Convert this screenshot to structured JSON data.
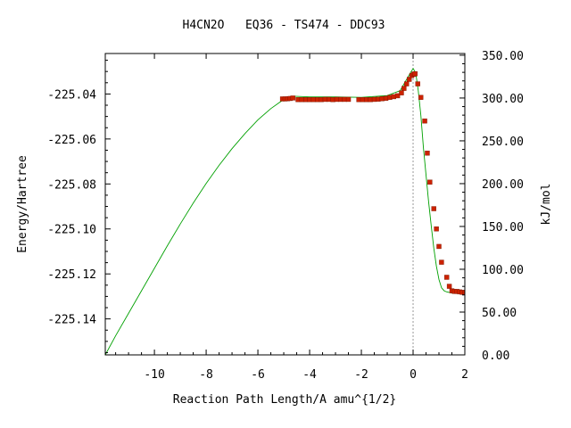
{
  "chart_data": {
    "type": "line",
    "title": "H4CN2O   EQ36 - TS474 - DDC93",
    "xlabel": "Reaction Path Length/A amu^{1/2}",
    "ylabel": "Energy/Hartree",
    "y2label": "kJ/mol",
    "xlim": [
      -11.9,
      2.0
    ],
    "ylim": [
      -225.156,
      -225.022
    ],
    "y2lim": [
      0,
      352
    ],
    "x_ticks": [
      -10,
      -8,
      -6,
      -4,
      -2,
      0,
      2
    ],
    "x_tick_labels": [
      "-10",
      "-8",
      "-6",
      "-4",
      "-2",
      "0",
      "2"
    ],
    "y_ticks": [
      -225.04,
      -225.06,
      -225.08,
      -225.1,
      -225.12,
      -225.14
    ],
    "y_tick_labels": [
      "-225.04",
      "-225.06",
      "-225.08",
      "-225.10",
      "-225.12",
      "-225.14"
    ],
    "y2_ticks": [
      350,
      300,
      250,
      200,
      150,
      100,
      50,
      0
    ],
    "y2_tick_labels": [
      "350.00",
      "300.00",
      "250.00",
      "200.00",
      "150.00",
      "100.00",
      "50.00",
      "0.00"
    ],
    "ts_marker_x": 0.0,
    "colors": {
      "curve": "#00a000",
      "points": "#cc2200",
      "ts_line": "#999999"
    },
    "series": [
      {
        "style": "line",
        "x": [
          -11.9,
          -11.5,
          -11,
          -10.5,
          -10,
          -9.5,
          -9,
          -8.5,
          -8,
          -7.5,
          -7,
          -6.5,
          -6,
          -5.5,
          -5.0,
          -4.6,
          -4.0,
          -3.0,
          -2.0,
          -1.0,
          -0.5,
          -0.3,
          -0.1,
          0.0,
          0.1,
          0.2,
          0.3,
          0.4,
          0.5,
          0.6,
          0.7,
          0.8,
          0.9,
          1.0,
          1.1,
          1.2,
          1.3,
          1.5,
          2.0
        ],
        "y": [
          -225.156,
          -225.1475,
          -225.1375,
          -225.1275,
          -225.1175,
          -225.1075,
          -225.0978,
          -225.0885,
          -225.0798,
          -225.0717,
          -225.0643,
          -225.0576,
          -225.0515,
          -225.0465,
          -225.0424,
          -225.041,
          -225.0413,
          -225.0413,
          -225.0415,
          -225.0407,
          -225.0385,
          -225.0345,
          -225.0305,
          -225.0287,
          -225.0305,
          -225.0385,
          -225.0495,
          -225.064,
          -225.076,
          -225.088,
          -225.0985,
          -225.1085,
          -225.1165,
          -225.1225,
          -225.1262,
          -225.1275,
          -225.128,
          -225.1285,
          -225.1287
        ]
      },
      {
        "style": "points",
        "x": [
          -5.05,
          -4.95,
          -4.85,
          -4.75,
          -4.65,
          -4.45,
          -4.3,
          -4.15,
          -4.0,
          -3.85,
          -3.7,
          -3.55,
          -3.4,
          -3.25,
          -3.1,
          -2.95,
          -2.8,
          -2.65,
          -2.5,
          -2.1,
          -1.95,
          -1.8,
          -1.65,
          -1.5,
          -1.35,
          -1.2,
          -1.05,
          -0.9,
          -0.75,
          -0.6,
          -0.45,
          -0.35,
          -0.25,
          -0.15,
          -0.05,
          0.02,
          0.08,
          0.18,
          0.3,
          0.45,
          0.55,
          0.65,
          0.8,
          0.9,
          1.0,
          1.1,
          1.3,
          1.4,
          1.5,
          1.6,
          1.7,
          1.8,
          1.9,
          2.0
        ],
        "y": [
          -225.0422,
          -225.0422,
          -225.0421,
          -225.042,
          -225.0418,
          -225.0425,
          -225.0425,
          -225.0425,
          -225.0425,
          -225.0425,
          -225.0425,
          -225.0425,
          -225.0424,
          -225.0424,
          -225.0425,
          -225.0424,
          -225.0424,
          -225.0424,
          -225.0424,
          -225.0425,
          -225.0425,
          -225.0425,
          -225.0425,
          -225.0424,
          -225.0423,
          -225.0421,
          -225.0419,
          -225.0415,
          -225.0412,
          -225.0408,
          -225.0395,
          -225.0375,
          -225.0355,
          -225.0335,
          -225.0318,
          -225.0312,
          -225.031,
          -225.0355,
          -225.0415,
          -225.052,
          -225.0663,
          -225.0792,
          -225.091,
          -225.1,
          -225.1078,
          -225.1148,
          -225.1215,
          -225.1255,
          -225.1275,
          -225.1278,
          -225.1278,
          -225.128,
          -225.1282,
          -225.1283
        ]
      }
    ]
  }
}
